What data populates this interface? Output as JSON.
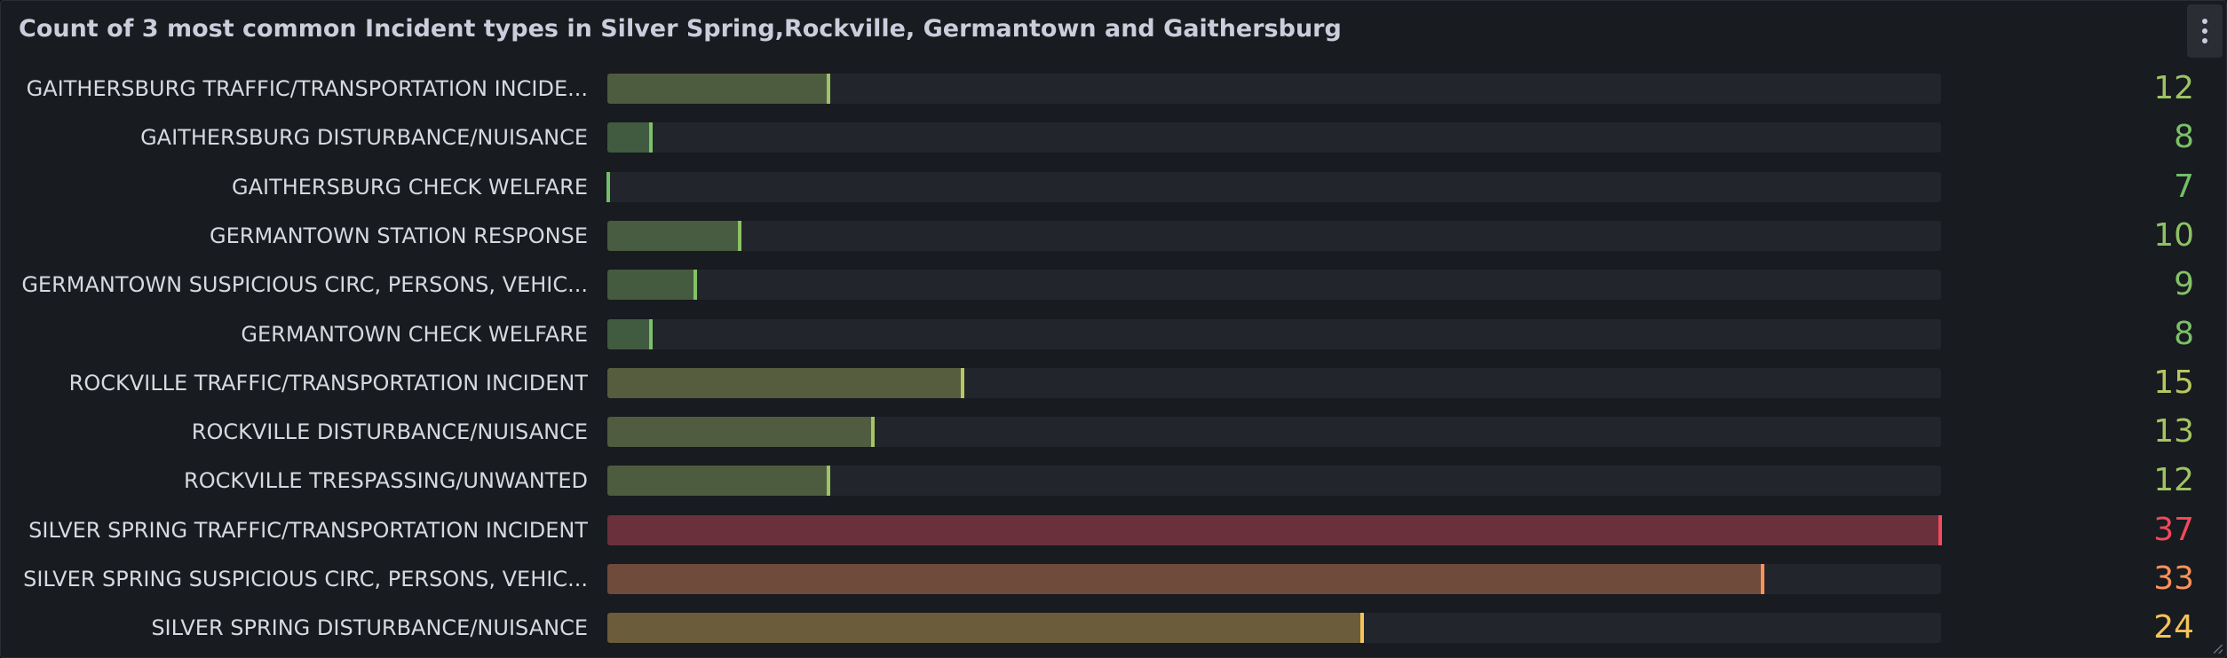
{
  "panel": {
    "title": "Count of 3 most common Incident types in Silver Spring,Rockville, Germantown and Gaithersburg",
    "menu_icon": "kebab-menu-icon"
  },
  "chart_data": {
    "type": "bar",
    "orientation": "horizontal",
    "title": "Count of 3 most common Incident types in Silver Spring,Rockville, Germantown and Gaithersburg",
    "xlim": [
      7,
      37
    ],
    "categories": [
      "GAITHERSBURG TRAFFIC/TRANSPORTATION INCIDE...",
      "GAITHERSBURG DISTURBANCE/NUISANCE",
      "GAITHERSBURG CHECK WELFARE",
      "GERMANTOWN STATION RESPONSE",
      "GERMANTOWN SUSPICIOUS CIRC, PERSONS, VEHIC...",
      "GERMANTOWN CHECK WELFARE",
      "ROCKVILLE TRAFFIC/TRANSPORTATION INCIDENT",
      "ROCKVILLE DISTURBANCE/NUISANCE",
      "ROCKVILLE TRESPASSING/UNWANTED",
      "SILVER SPRING TRAFFIC/TRANSPORTATION INCIDENT",
      "SILVER SPRING SUSPICIOUS CIRC, PERSONS, VEHIC...",
      "SILVER SPRING DISTURBANCE/NUISANCE"
    ],
    "values": [
      12,
      8,
      7,
      10,
      9,
      8,
      15,
      13,
      12,
      37,
      33,
      24
    ],
    "value_labels": [
      "12",
      "8",
      "7",
      "10",
      "9",
      "8",
      "15",
      "13",
      "12",
      "37",
      "33",
      "24"
    ],
    "colors": {
      "track": "#22252b",
      "panel_background": "#181b1f",
      "scale_low": "#73bf69",
      "scale_mid": "#f2cc59",
      "scale_orange": "#ff9b5a",
      "scale_high": "#f2495c"
    }
  }
}
